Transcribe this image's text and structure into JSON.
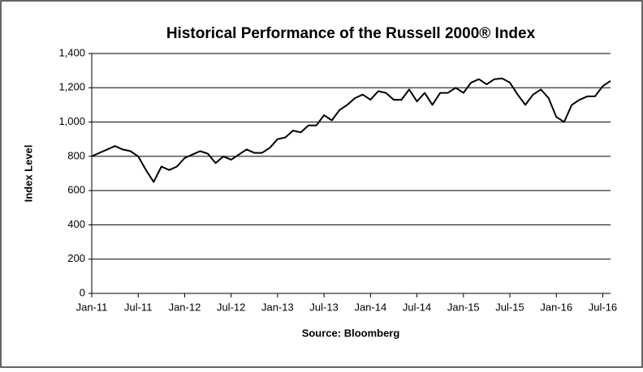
{
  "chart_data": {
    "type": "line",
    "title": "Historical Performance of the Russell 2000® Index",
    "ylabel": "Index Level",
    "source": "Source:  Bloomberg",
    "categories": [
      "Jan-11",
      null,
      null,
      null,
      null,
      null,
      "Jul-11",
      null,
      null,
      null,
      null,
      null,
      "Jan-12",
      null,
      null,
      null,
      null,
      null,
      "Jul-12",
      null,
      null,
      null,
      null,
      null,
      "Jan-13",
      null,
      null,
      null,
      null,
      null,
      "Jul-13",
      null,
      null,
      null,
      null,
      null,
      "Jan-14",
      null,
      null,
      null,
      null,
      null,
      "Jul-14",
      null,
      null,
      null,
      null,
      null,
      "Jan-15",
      null,
      null,
      null,
      null,
      null,
      "Jul-15",
      null,
      null,
      null,
      null,
      null,
      "Jan-16",
      null,
      null,
      null,
      null,
      null,
      "Jul-16",
      null
    ],
    "values": [
      800,
      820,
      840,
      860,
      840,
      830,
      800,
      720,
      650,
      740,
      720,
      740,
      790,
      810,
      830,
      815,
      760,
      800,
      780,
      810,
      840,
      820,
      820,
      850,
      900,
      910,
      950,
      940,
      980,
      980,
      1040,
      1010,
      1070,
      1100,
      1140,
      1160,
      1130,
      1180,
      1170,
      1130,
      1130,
      1190,
      1120,
      1170,
      1100,
      1170,
      1170,
      1200,
      1170,
      1230,
      1250,
      1220,
      1250,
      1255,
      1230,
      1160,
      1100,
      1160,
      1190,
      1140,
      1030,
      1000,
      1100,
      1130,
      1150,
      1150,
      1210,
      1240
    ],
    "color": "#000000",
    "ylim": [
      0,
      1400
    ],
    "yticks": [
      0,
      200,
      400,
      600,
      800,
      {
        "value": 1000,
        "label": "1,000"
      },
      {
        "value": 1200,
        "label": "1,200"
      },
      {
        "value": 1400,
        "label": "1,400"
      }
    ],
    "grid": true
  }
}
